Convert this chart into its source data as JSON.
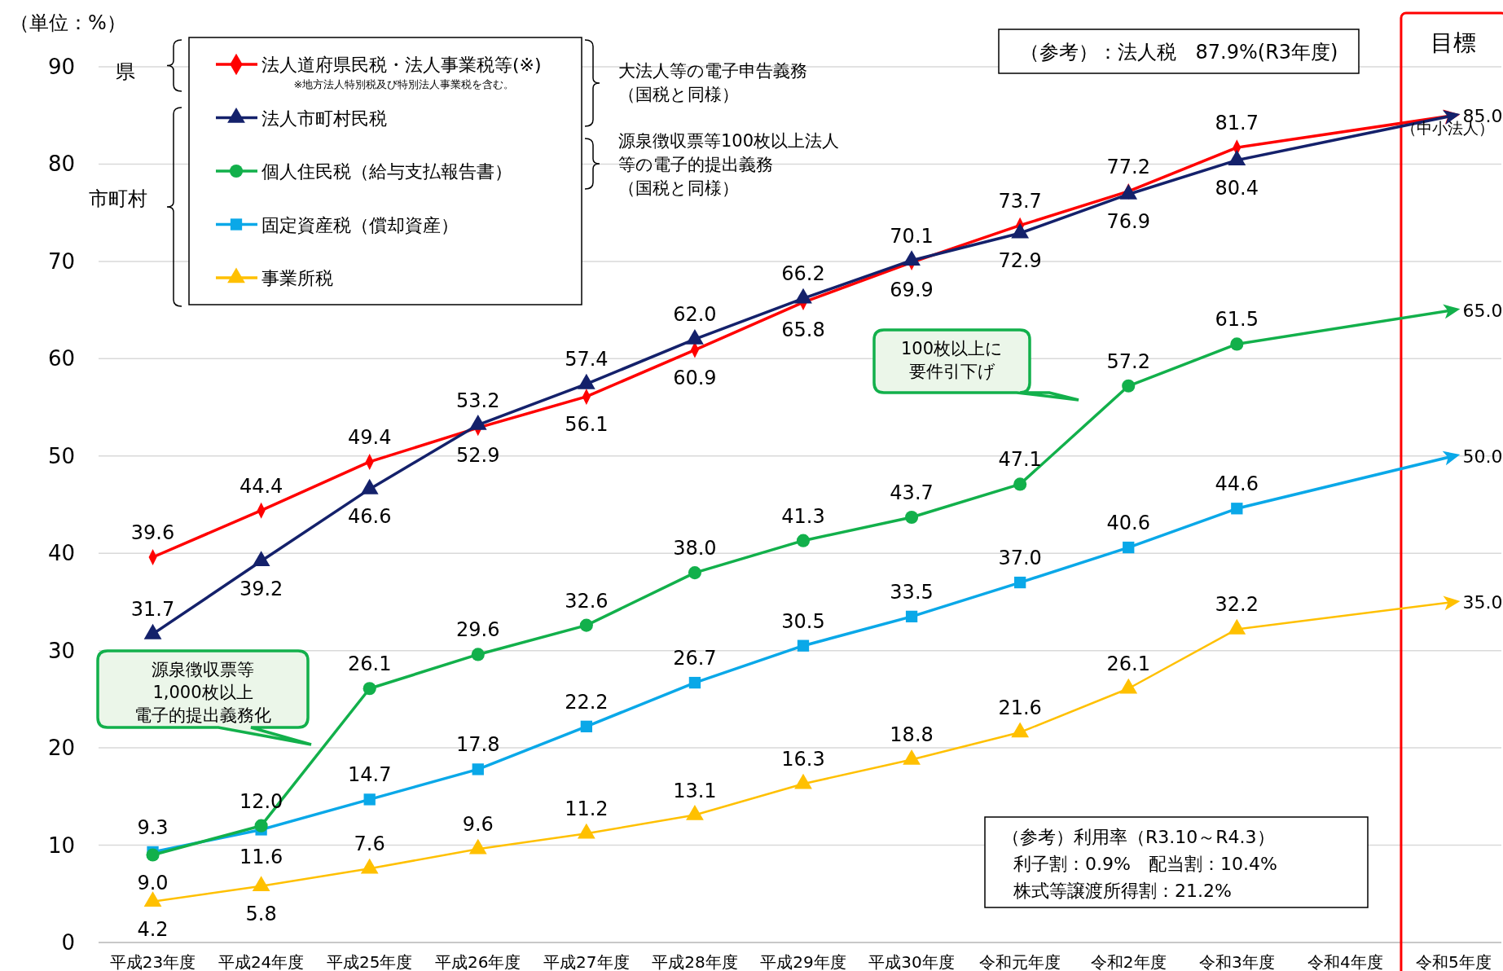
{
  "chart_data": {
    "type": "line",
    "ylabel": "（単位：%）",
    "categories": [
      "平成23年度",
      "平成24年度",
      "平成25年度",
      "平成26年度",
      "平成27年度",
      "平成28年度",
      "平成29年度",
      "平成30年度",
      "令和元年度",
      "令和2年度",
      "令和3年度",
      "令和4年度",
      "令和5年度"
    ],
    "series": [
      {
        "name": "法人道府県民税・法人事業税等(※)",
        "color": "#ff0000",
        "marker": "diamond",
        "values": [
          39.6,
          44.4,
          49.4,
          52.9,
          56.1,
          60.9,
          65.8,
          69.9,
          73.7,
          77.2,
          81.7,
          null,
          85.0
        ],
        "value_labels": [
          "39.6",
          "44.4",
          "49.4",
          "52.9",
          "56.1",
          "60.9",
          "65.8",
          "69.9",
          "73.7",
          "77.2",
          "81.7",
          null,
          "85.0"
        ]
      },
      {
        "name": "法人市町村民税",
        "color": "#14216b",
        "marker": "triangle",
        "values": [
          31.7,
          39.2,
          46.6,
          53.2,
          57.4,
          62.0,
          66.2,
          70.1,
          72.9,
          76.9,
          80.4,
          null,
          85.0
        ],
        "value_labels": [
          "31.7",
          "39.2",
          "46.6",
          "53.2",
          "57.4",
          "62.0",
          "66.2",
          "70.1",
          "72.9",
          "76.9",
          "80.4",
          null,
          null
        ]
      },
      {
        "name": "個人住民税（給与支払報告書）",
        "color": "#12b04b",
        "marker": "circle",
        "values": [
          9.0,
          12.0,
          26.1,
          29.6,
          32.6,
          38.0,
          41.3,
          43.7,
          47.1,
          57.2,
          61.5,
          null,
          65.0
        ],
        "value_labels": [
          "9.0",
          "12.0",
          "26.1",
          "29.6",
          "32.6",
          "38.0",
          "41.3",
          "43.7",
          "47.1",
          "57.2",
          "61.5",
          null,
          "65.0"
        ]
      },
      {
        "name": "固定資産税（償却資産）",
        "color": "#0aa8e8",
        "marker": "square",
        "values": [
          9.3,
          11.6,
          14.7,
          17.8,
          22.2,
          26.7,
          30.5,
          33.5,
          37.0,
          40.6,
          44.6,
          null,
          50.0
        ],
        "value_labels": [
          "9.3",
          "11.6",
          "14.7",
          "17.8",
          "22.2",
          "26.7",
          "30.5",
          "33.5",
          "37.0",
          "40.6",
          "44.6",
          null,
          "50.0"
        ]
      },
      {
        "name": "事業所税",
        "color": "#ffc000",
        "marker": "triangle",
        "values": [
          4.2,
          5.8,
          7.6,
          9.6,
          11.2,
          13.1,
          16.3,
          18.8,
          21.6,
          26.1,
          32.2,
          null,
          35.0
        ],
        "value_labels": [
          "4.2",
          "5.8",
          "7.6",
          "9.6",
          "11.2",
          "13.1",
          "16.3",
          "18.8",
          "21.6",
          "26.1",
          "32.2",
          null,
          "35.0"
        ]
      }
    ],
    "ylim": [
      0,
      90
    ],
    "yticks": [
      0,
      10,
      20,
      30,
      40,
      50,
      60,
      70,
      80,
      90
    ],
    "grid": "y",
    "legend": "top left",
    "annotations": [
      "県",
      "市町村",
      "大法人等の電子申告義務（国税と同様）",
      "源泉徴収票等100枚以上法人等の電子的提出義務（国税と同様）",
      "（参考）：法人税　87.9%(R3年度)",
      "（中小法人）",
      "100枚以上に要件引下げ",
      "源泉徴収票等1,000枚以上電子的提出義務化",
      "（参考）利用率（R3.10～R4.3）",
      "利子割：0.9%　配当割：10.4%",
      "株式等譲渡所得割：21.2%",
      "※地方法人特別税及び特別法人事業税を含む。",
      "目標"
    ]
  }
}
